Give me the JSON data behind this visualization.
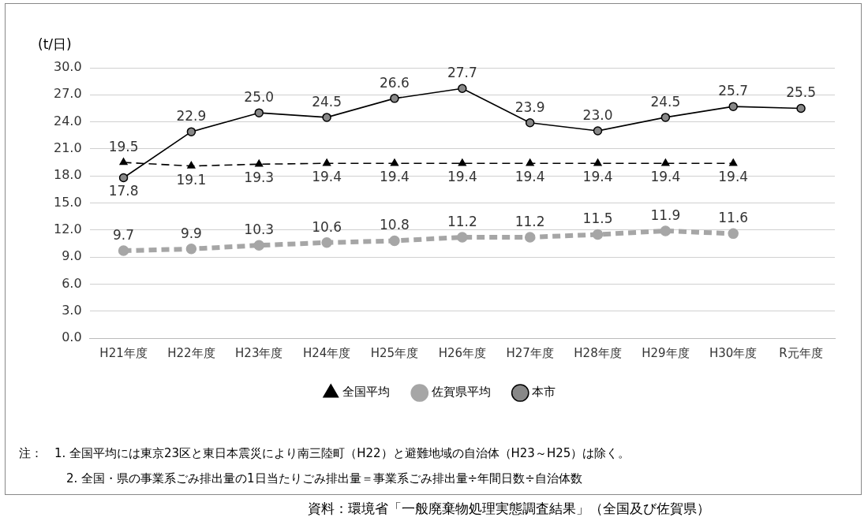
{
  "chart_data": {
    "type": "line",
    "ylabel": "(t/日)",
    "categories": [
      "H21年度",
      "H22年度",
      "H23年度",
      "H24年度",
      "H25年度",
      "H26年度",
      "H27年度",
      "H28年度",
      "H29年度",
      "H30年度",
      "R元年度"
    ],
    "series": [
      {
        "name": "全国平均",
        "color": "#000000",
        "marker": "triangle",
        "line_style": "dashed",
        "values": [
          19.5,
          19.1,
          19.3,
          19.4,
          19.4,
          19.4,
          19.4,
          19.4,
          19.4,
          19.4,
          null
        ],
        "value_labels": [
          "19.5",
          "19.1",
          "19.3",
          "19.4",
          "19.4",
          "19.4",
          "19.4",
          "19.4",
          "19.4",
          "19.4",
          null
        ]
      },
      {
        "name": "佐賀県平均",
        "color": "#a6a6a6",
        "marker": "circle",
        "line_style": "dashed",
        "values": [
          9.7,
          9.9,
          10.3,
          10.6,
          10.8,
          11.2,
          11.2,
          11.5,
          11.9,
          11.6,
          null
        ],
        "value_labels": [
          "9.7",
          "9.9",
          "10.3",
          "10.6",
          "10.8",
          "11.2",
          "11.2",
          "11.5",
          "11.9",
          "11.6",
          null
        ]
      },
      {
        "name": "本市",
        "color": "#000000",
        "marker": "circle",
        "line_style": "solid",
        "values": [
          17.8,
          22.9,
          25.0,
          24.5,
          26.6,
          27.7,
          23.9,
          23.0,
          24.5,
          25.7,
          25.5
        ],
        "value_labels": [
          "17.8",
          "22.9",
          "25.0",
          "24.5",
          "26.6",
          "27.7",
          "23.9",
          "23.0",
          "24.5",
          "25.7",
          "25.5"
        ]
      }
    ],
    "ylim": [
      0,
      30
    ],
    "yticks": [
      {
        "value": 0,
        "label": "0.0"
      },
      {
        "value": 3,
        "label": "3.0"
      },
      {
        "value": 6,
        "label": "6.0"
      },
      {
        "value": 9,
        "label": "9.0"
      },
      {
        "value": 12,
        "label": "12.0"
      },
      {
        "value": 15,
        "label": "15.0"
      },
      {
        "value": 18,
        "label": "18.0"
      },
      {
        "value": 21,
        "label": "21.0"
      },
      {
        "value": 24,
        "label": "24.0"
      },
      {
        "value": 27,
        "label": "27.0"
      },
      {
        "value": 30,
        "label": "30.0"
      }
    ],
    "grid": "y",
    "legend": "bottom",
    "annotations": [
      "注：　1. 全国平均には東京23区と東日本震災により南三陸町（H22）と避難地域の自治体（H23～H25）は除く。",
      "2. 全国・県の事業系ごみ排出量の1日当たりごみ排出量＝事業系ごみ排出量÷年間日数÷自治体数",
      "資料：環境省「一般廃棄物処理実態調査結果」（全国及び佐賀県）"
    ]
  }
}
